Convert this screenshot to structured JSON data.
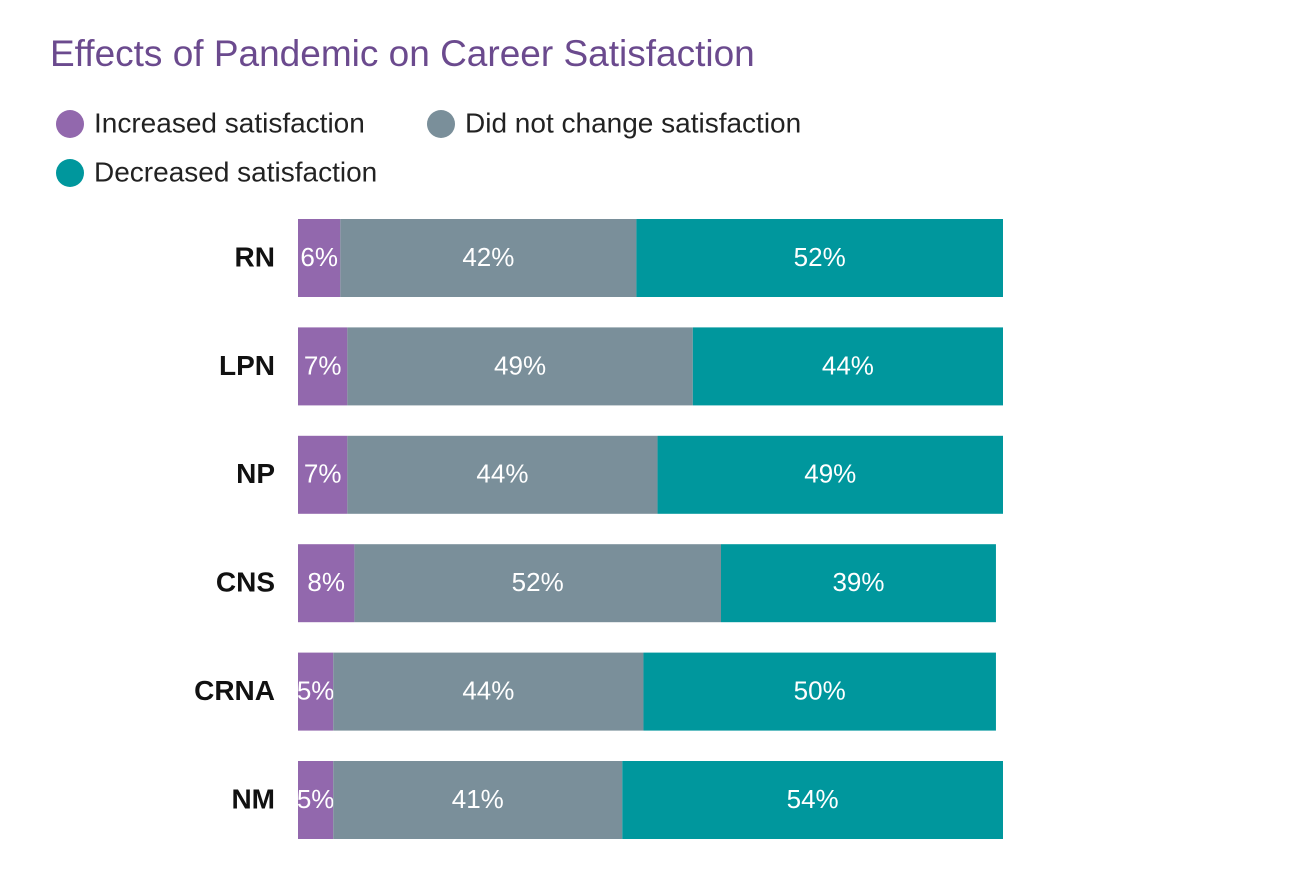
{
  "chart_data": {
    "type": "stacked-bar-horizontal",
    "title": "Effects of Pandemic on Career Satisfaction",
    "categories": [
      "RN",
      "LPN",
      "NP",
      "CNS",
      "CRNA",
      "NM"
    ],
    "series": [
      {
        "name": "Increased satisfaction",
        "color": "#9268ad",
        "values": [
          6,
          7,
          7,
          8,
          5,
          5
        ],
        "value_labels": [
          "6%",
          "7%",
          "7%",
          "8%",
          "5%",
          "5%"
        ]
      },
      {
        "name": "Did not change satisfaction",
        "color": "#7a8f9a",
        "values": [
          42,
          49,
          44,
          52,
          44,
          41
        ],
        "value_labels": [
          "42%",
          "49%",
          "44%",
          "52%",
          "44%",
          "41%"
        ]
      },
      {
        "name": "Decreased satisfaction",
        "color": "#00979d",
        "values": [
          52,
          44,
          49,
          39,
          50,
          54
        ],
        "value_labels": [
          "52%",
          "44%",
          "49%",
          "39%",
          "50%",
          "54%"
        ]
      }
    ]
  }
}
